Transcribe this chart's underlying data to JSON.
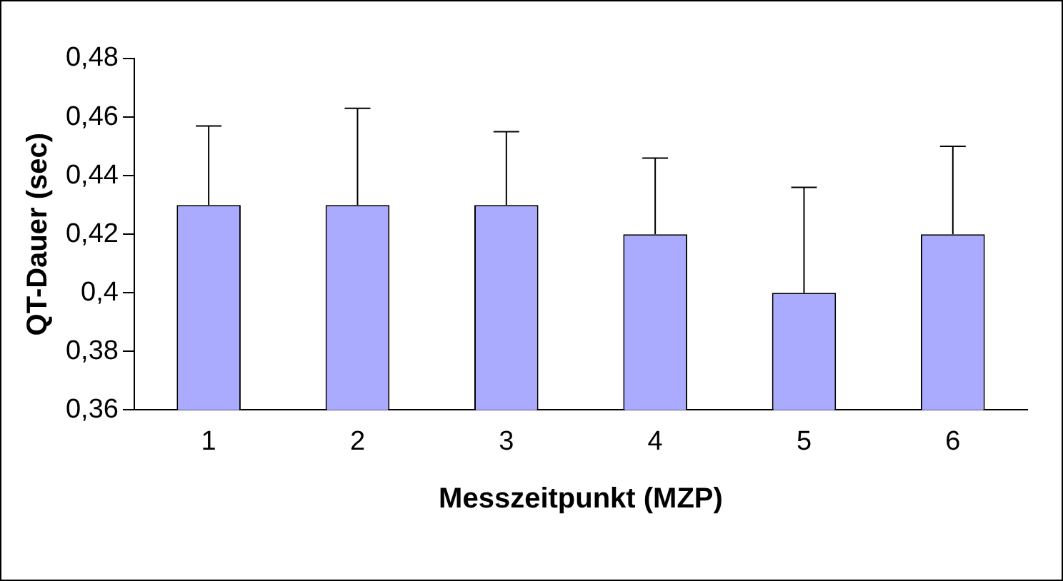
{
  "chart_data": {
    "type": "bar",
    "xlabel": "Messzeitpunkt (MZP)",
    "ylabel": "QT-Dauer (sec)",
    "categories": [
      "1",
      "2",
      "3",
      "4",
      "5",
      "6"
    ],
    "values": [
      0.43,
      0.43,
      0.43,
      0.42,
      0.4,
      0.42
    ],
    "errors": [
      [
        0.43,
        0.457
      ],
      [
        0.43,
        0.463
      ],
      [
        0.43,
        0.455
      ],
      [
        0.42,
        0.446
      ],
      [
        0.4,
        0.436
      ],
      [
        0.42,
        0.45
      ]
    ],
    "color": "#aaaaff",
    "ylim": [
      0.36,
      0.48
    ],
    "yticks": [
      {
        "value": 0.36,
        "label": "0,36"
      },
      {
        "value": 0.38,
        "label": "0,38"
      },
      {
        "value": 0.4,
        "label": "0,4"
      },
      {
        "value": 0.42,
        "label": "0,42"
      },
      {
        "value": 0.44,
        "label": "0,44"
      },
      {
        "value": 0.46,
        "label": "0,46"
      },
      {
        "value": 0.48,
        "label": "0,48"
      }
    ],
    "grid": false,
    "legend": false
  }
}
